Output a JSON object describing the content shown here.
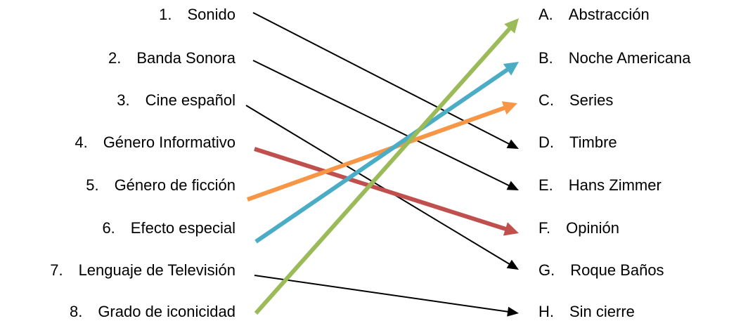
{
  "left_items": [
    {
      "number": "1.",
      "text": "Sonido"
    },
    {
      "number": "2.",
      "text": "Banda Sonora"
    },
    {
      "number": "3.",
      "text": "Cine español"
    },
    {
      "number": "4.",
      "text": "Género Informativo"
    },
    {
      "number": "5.",
      "text": "Género de ficción"
    },
    {
      "number": "6.",
      "text": "Efecto especial"
    },
    {
      "number": "7.",
      "text": "Lenguaje de Televisión"
    },
    {
      "number": "8.",
      "text": "Grado de iconicidad"
    }
  ],
  "right_items": [
    {
      "letter": "A.",
      "text": "Abstracción"
    },
    {
      "letter": "B.",
      "text": "Noche Americana"
    },
    {
      "letter": "C.",
      "text": "Series"
    },
    {
      "letter": "D.",
      "text": "Timbre"
    },
    {
      "letter": "E.",
      "text": "Hans Zimmer"
    },
    {
      "letter": "F.",
      "text": "Opinión"
    },
    {
      "letter": "G.",
      "text": "Roque Baños"
    },
    {
      "letter": "H.",
      "text": "Sin cierre"
    }
  ],
  "connections": [
    {
      "from": "1.",
      "to": "D.",
      "color": "#000000",
      "style": "thin"
    },
    {
      "from": "2.",
      "to": "E.",
      "color": "#000000",
      "style": "thin"
    },
    {
      "from": "3.",
      "to": "G.",
      "color": "#000000",
      "style": "thin"
    },
    {
      "from": "4.",
      "to": "F.",
      "color": "#C0504D",
      "style": "thick"
    },
    {
      "from": "5.",
      "to": "C.",
      "color": "#F79646",
      "style": "thick"
    },
    {
      "from": "6.",
      "to": "B.",
      "color": "#4BACC6",
      "style": "thick"
    },
    {
      "from": "7.",
      "to": "H.",
      "color": "#000000",
      "style": "thin"
    },
    {
      "from": "8.",
      "to": "A.",
      "color": "#9BBB59",
      "style": "thick"
    }
  ]
}
